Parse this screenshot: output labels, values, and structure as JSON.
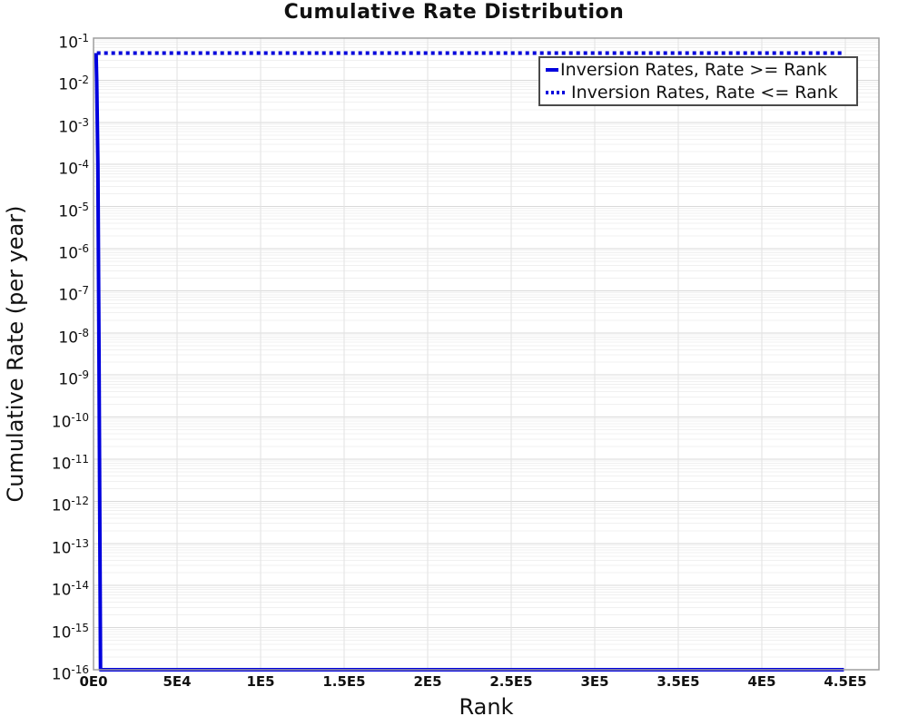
{
  "colors": {
    "series_blue": "#0000dd",
    "plot_border": "#9e9e9e",
    "grid_major": "#d9d9d9",
    "grid_minor": "#f0f0f0",
    "grid_vertical": "#e2e2e2",
    "text": "#111111",
    "legend_border": "#4a4a4a"
  },
  "chart_data": {
    "type": "line",
    "title": "Cumulative Rate Distribution",
    "xlabel": "Rank",
    "ylabel": "Cumulative Rate (per year)",
    "grid": true,
    "legend_position": "top-right",
    "x_axis": {
      "scale": "linear",
      "min": 0,
      "max": 470000,
      "ticks": [
        {
          "value": 0,
          "label": "0E0"
        },
        {
          "value": 50000,
          "label": "5E4"
        },
        {
          "value": 100000,
          "label": "1E5"
        },
        {
          "value": 150000,
          "label": "1.5E5"
        },
        {
          "value": 200000,
          "label": "2E5"
        },
        {
          "value": 250000,
          "label": "2.5E5"
        },
        {
          "value": 300000,
          "label": "3E5"
        },
        {
          "value": 350000,
          "label": "3.5E5"
        },
        {
          "value": 400000,
          "label": "4E5"
        },
        {
          "value": 450000,
          "label": "4.5E5"
        }
      ]
    },
    "y_axis": {
      "scale": "log",
      "min_exponent": -16,
      "max_exponent": -1,
      "tick_exponents": [
        -1,
        -2,
        -3,
        -4,
        -5,
        -6,
        -7,
        -8,
        -9,
        -10,
        -11,
        -12,
        -13,
        -14,
        -15,
        -16
      ]
    },
    "series": [
      {
        "name": "Inversion Rates, Rate >= Rank",
        "line_style": "solid",
        "color": "#0000dd",
        "width": 4,
        "points": [
          [
            1500,
            0.044
          ],
          [
            1900,
            0.01
          ],
          [
            2600,
            0.0001
          ],
          [
            3200,
            1e-08
          ],
          [
            3700,
            1e-12
          ],
          [
            4200,
            1e-16
          ],
          [
            449000,
            1e-16
          ]
        ]
      },
      {
        "name": "Inversion Rates, Rate <= Rank",
        "line_style": "dotted",
        "color": "#0000dd",
        "width": 4,
        "points": [
          [
            2000,
            0.044
          ],
          [
            449000,
            0.044
          ]
        ]
      }
    ]
  }
}
